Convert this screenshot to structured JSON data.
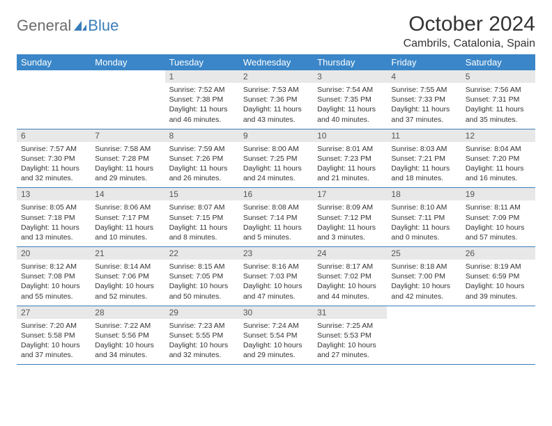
{
  "logo": {
    "general": "General",
    "blue": "Blue"
  },
  "title": "October 2024",
  "location": "Cambrils, Catalonia, Spain",
  "colors": {
    "header_bg": "#3a86c8",
    "header_text": "#ffffff",
    "daynum_bg": "#e8e8e8",
    "border": "#3a7db8",
    "text": "#333333",
    "logo_gray": "#6b6b6b",
    "logo_blue": "#3a7db8"
  },
  "weekdays": [
    "Sunday",
    "Monday",
    "Tuesday",
    "Wednesday",
    "Thursday",
    "Friday",
    "Saturday"
  ],
  "weeks": [
    [
      null,
      null,
      {
        "n": "1",
        "sunrise": "7:52 AM",
        "sunset": "7:38 PM",
        "dh": "11",
        "dm": "and 46 minutes."
      },
      {
        "n": "2",
        "sunrise": "7:53 AM",
        "sunset": "7:36 PM",
        "dh": "11",
        "dm": "and 43 minutes."
      },
      {
        "n": "3",
        "sunrise": "7:54 AM",
        "sunset": "7:35 PM",
        "dh": "11",
        "dm": "and 40 minutes."
      },
      {
        "n": "4",
        "sunrise": "7:55 AM",
        "sunset": "7:33 PM",
        "dh": "11",
        "dm": "and 37 minutes."
      },
      {
        "n": "5",
        "sunrise": "7:56 AM",
        "sunset": "7:31 PM",
        "dh": "11",
        "dm": "and 35 minutes."
      }
    ],
    [
      {
        "n": "6",
        "sunrise": "7:57 AM",
        "sunset": "7:30 PM",
        "dh": "11",
        "dm": "and 32 minutes."
      },
      {
        "n": "7",
        "sunrise": "7:58 AM",
        "sunset": "7:28 PM",
        "dh": "11",
        "dm": "and 29 minutes."
      },
      {
        "n": "8",
        "sunrise": "7:59 AM",
        "sunset": "7:26 PM",
        "dh": "11",
        "dm": "and 26 minutes."
      },
      {
        "n": "9",
        "sunrise": "8:00 AM",
        "sunset": "7:25 PM",
        "dh": "11",
        "dm": "and 24 minutes."
      },
      {
        "n": "10",
        "sunrise": "8:01 AM",
        "sunset": "7:23 PM",
        "dh": "11",
        "dm": "and 21 minutes."
      },
      {
        "n": "11",
        "sunrise": "8:03 AM",
        "sunset": "7:21 PM",
        "dh": "11",
        "dm": "and 18 minutes."
      },
      {
        "n": "12",
        "sunrise": "8:04 AM",
        "sunset": "7:20 PM",
        "dh": "11",
        "dm": "and 16 minutes."
      }
    ],
    [
      {
        "n": "13",
        "sunrise": "8:05 AM",
        "sunset": "7:18 PM",
        "dh": "11",
        "dm": "and 13 minutes."
      },
      {
        "n": "14",
        "sunrise": "8:06 AM",
        "sunset": "7:17 PM",
        "dh": "11",
        "dm": "and 10 minutes."
      },
      {
        "n": "15",
        "sunrise": "8:07 AM",
        "sunset": "7:15 PM",
        "dh": "11",
        "dm": "and 8 minutes."
      },
      {
        "n": "16",
        "sunrise": "8:08 AM",
        "sunset": "7:14 PM",
        "dh": "11",
        "dm": "and 5 minutes."
      },
      {
        "n": "17",
        "sunrise": "8:09 AM",
        "sunset": "7:12 PM",
        "dh": "11",
        "dm": "and 3 minutes."
      },
      {
        "n": "18",
        "sunrise": "8:10 AM",
        "sunset": "7:11 PM",
        "dh": "11",
        "dm": "and 0 minutes."
      },
      {
        "n": "19",
        "sunrise": "8:11 AM",
        "sunset": "7:09 PM",
        "dh": "10",
        "dm": "and 57 minutes."
      }
    ],
    [
      {
        "n": "20",
        "sunrise": "8:12 AM",
        "sunset": "7:08 PM",
        "dh": "10",
        "dm": "and 55 minutes."
      },
      {
        "n": "21",
        "sunrise": "8:14 AM",
        "sunset": "7:06 PM",
        "dh": "10",
        "dm": "and 52 minutes."
      },
      {
        "n": "22",
        "sunrise": "8:15 AM",
        "sunset": "7:05 PM",
        "dh": "10",
        "dm": "and 50 minutes."
      },
      {
        "n": "23",
        "sunrise": "8:16 AM",
        "sunset": "7:03 PM",
        "dh": "10",
        "dm": "and 47 minutes."
      },
      {
        "n": "24",
        "sunrise": "8:17 AM",
        "sunset": "7:02 PM",
        "dh": "10",
        "dm": "and 44 minutes."
      },
      {
        "n": "25",
        "sunrise": "8:18 AM",
        "sunset": "7:00 PM",
        "dh": "10",
        "dm": "and 42 minutes."
      },
      {
        "n": "26",
        "sunrise": "8:19 AM",
        "sunset": "6:59 PM",
        "dh": "10",
        "dm": "and 39 minutes."
      }
    ],
    [
      {
        "n": "27",
        "sunrise": "7:20 AM",
        "sunset": "5:58 PM",
        "dh": "10",
        "dm": "and 37 minutes."
      },
      {
        "n": "28",
        "sunrise": "7:22 AM",
        "sunset": "5:56 PM",
        "dh": "10",
        "dm": "and 34 minutes."
      },
      {
        "n": "29",
        "sunrise": "7:23 AM",
        "sunset": "5:55 PM",
        "dh": "10",
        "dm": "and 32 minutes."
      },
      {
        "n": "30",
        "sunrise": "7:24 AM",
        "sunset": "5:54 PM",
        "dh": "10",
        "dm": "and 29 minutes."
      },
      {
        "n": "31",
        "sunrise": "7:25 AM",
        "sunset": "5:53 PM",
        "dh": "10",
        "dm": "and 27 minutes."
      },
      null,
      null
    ]
  ],
  "labels": {
    "sunrise": "Sunrise:",
    "sunset": "Sunset:",
    "daylight": "Daylight:",
    "hours": "hours"
  }
}
